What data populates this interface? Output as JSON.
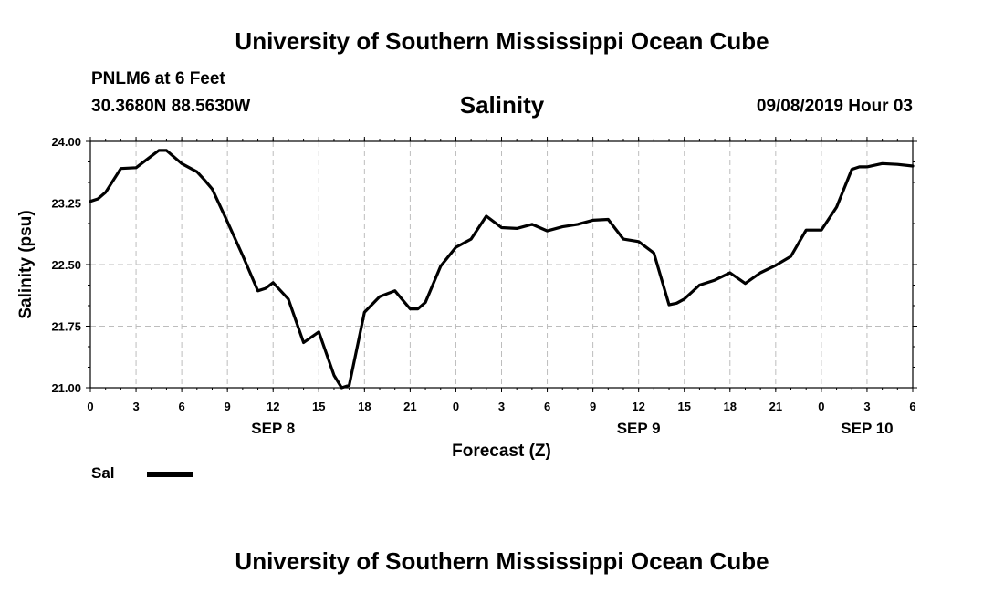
{
  "header": {
    "org_title": "University of Southern Mississippi Ocean Cube",
    "station": "PNLM6 at 6 Feet",
    "coords": "30.3680N 88.5630W",
    "parameter": "Salinity",
    "datetime": "09/08/2019 Hour 03"
  },
  "footer": {
    "org_title": "University of Southern Mississippi Ocean Cube"
  },
  "legend": {
    "label": "Sal"
  },
  "chart_data": {
    "type": "line",
    "title": "Salinity",
    "xlabel": "Forecast (Z)",
    "ylabel": "Salinity (psu)",
    "xlim": [
      0,
      54
    ],
    "ylim": [
      21.0,
      24.0
    ],
    "yticks": [
      "21.00",
      "21.75",
      "22.50",
      "23.25",
      "24.00"
    ],
    "xtick_labels": [
      "0",
      "3",
      "6",
      "9",
      "12",
      "15",
      "18",
      "21",
      "0",
      "3",
      "6",
      "9",
      "12",
      "15",
      "18",
      "21",
      "0",
      "3",
      "6"
    ],
    "date_labels": [
      {
        "label": "SEP 8",
        "hour": 12
      },
      {
        "label": "SEP 9",
        "hour": 36
      },
      {
        "label": "SEP 10",
        "hour": 51
      }
    ],
    "grid": true,
    "series": [
      {
        "name": "Sal",
        "x": [
          0,
          0.5,
          1,
          2,
          3,
          4,
          4.5,
          5,
          6,
          7,
          7.5,
          8,
          9,
          10,
          11,
          11.5,
          12,
          13,
          14,
          15,
          16,
          16.5,
          17,
          18,
          19,
          20,
          21,
          21.5,
          22,
          23,
          24,
          25,
          26,
          27,
          28,
          29,
          30,
          31,
          32,
          33,
          34,
          35,
          36,
          37,
          38,
          38.5,
          39,
          40,
          41,
          42,
          43,
          44,
          45,
          46,
          47,
          48,
          49,
          50,
          50.5,
          51,
          52,
          53,
          54
        ],
        "y": [
          23.27,
          23.3,
          23.38,
          23.67,
          23.68,
          23.82,
          23.89,
          23.89,
          23.73,
          23.63,
          23.53,
          23.42,
          23.02,
          22.61,
          22.18,
          22.21,
          22.28,
          22.08,
          21.55,
          21.68,
          21.15,
          21.0,
          21.03,
          21.92,
          22.11,
          22.18,
          21.96,
          21.96,
          22.04,
          22.48,
          22.71,
          22.81,
          23.09,
          22.95,
          22.94,
          22.99,
          22.91,
          22.96,
          22.99,
          23.04,
          23.05,
          22.81,
          22.78,
          22.64,
          22.01,
          22.03,
          22.08,
          22.25,
          22.31,
          22.4,
          22.27,
          22.4,
          22.49,
          22.6,
          22.92,
          22.92,
          23.2,
          23.66,
          23.69,
          23.69,
          23.73,
          23.72,
          23.7
        ]
      }
    ]
  }
}
